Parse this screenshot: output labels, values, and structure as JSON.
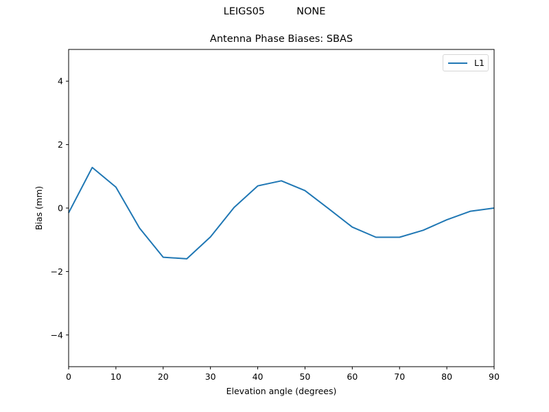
{
  "figure": {
    "suptitle": "LEIGS05          NONE",
    "title": "Antenna Phase Biases: SBAS"
  },
  "chart_data": {
    "type": "line",
    "title": "Antenna Phase Biases: SBAS",
    "suptitle": "LEIGS05          NONE",
    "xlabel": "Elevation angle (degrees)",
    "ylabel": "Bias (mm)",
    "xlim": [
      0,
      90
    ],
    "ylim": [
      -5,
      5
    ],
    "xticks": [
      0,
      10,
      20,
      30,
      40,
      50,
      60,
      70,
      80,
      90
    ],
    "yticks": [
      -4,
      -2,
      0,
      2,
      4
    ],
    "ytick_labels": [
      "−4",
      "−2",
      "0",
      "2",
      "4"
    ],
    "grid": false,
    "legend_position": "upper right",
    "x": [
      0,
      5,
      10,
      15,
      20,
      25,
      30,
      35,
      40,
      45,
      50,
      55,
      60,
      65,
      70,
      75,
      80,
      85,
      90
    ],
    "series": [
      {
        "name": "L1",
        "color": "#1f77b4",
        "values": [
          -0.15,
          1.28,
          0.66,
          -0.63,
          -1.55,
          -1.6,
          -0.91,
          0.02,
          0.7,
          0.86,
          0.55,
          -0.02,
          -0.6,
          -0.92,
          -0.92,
          -0.7,
          -0.37,
          -0.1,
          0.0
        ]
      }
    ]
  },
  "legend": {
    "items": [
      {
        "label": "L1",
        "color": "#1f77b4"
      }
    ]
  }
}
